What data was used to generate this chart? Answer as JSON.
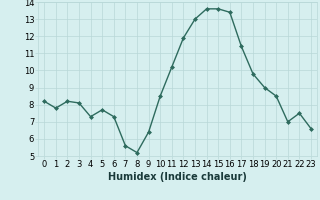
{
  "x": [
    0,
    1,
    2,
    3,
    4,
    5,
    6,
    7,
    8,
    9,
    10,
    11,
    12,
    13,
    14,
    15,
    16,
    17,
    18,
    19,
    20,
    21,
    22,
    23
  ],
  "y": [
    8.2,
    7.8,
    8.2,
    8.1,
    7.3,
    7.7,
    7.3,
    5.6,
    5.2,
    6.4,
    8.5,
    10.2,
    11.9,
    13.0,
    13.6,
    13.6,
    13.4,
    11.4,
    9.8,
    9.0,
    8.5,
    7.0,
    7.5,
    6.6
  ],
  "line_color": "#2e6b5e",
  "marker": "D",
  "marker_size": 2.0,
  "linewidth": 1.0,
  "bg_color": "#d6efef",
  "grid_color": "#b8d8d8",
  "xlabel": "Humidex (Indice chaleur)",
  "xlabel_fontsize": 7,
  "tick_fontsize": 6,
  "ylim": [
    5,
    14
  ],
  "xlim": [
    -0.5,
    23.5
  ],
  "yticks": [
    5,
    6,
    7,
    8,
    9,
    10,
    11,
    12,
    13,
    14
  ],
  "xticks": [
    0,
    1,
    2,
    3,
    4,
    5,
    6,
    7,
    8,
    9,
    10,
    11,
    12,
    13,
    14,
    15,
    16,
    17,
    18,
    19,
    20,
    21,
    22,
    23
  ]
}
